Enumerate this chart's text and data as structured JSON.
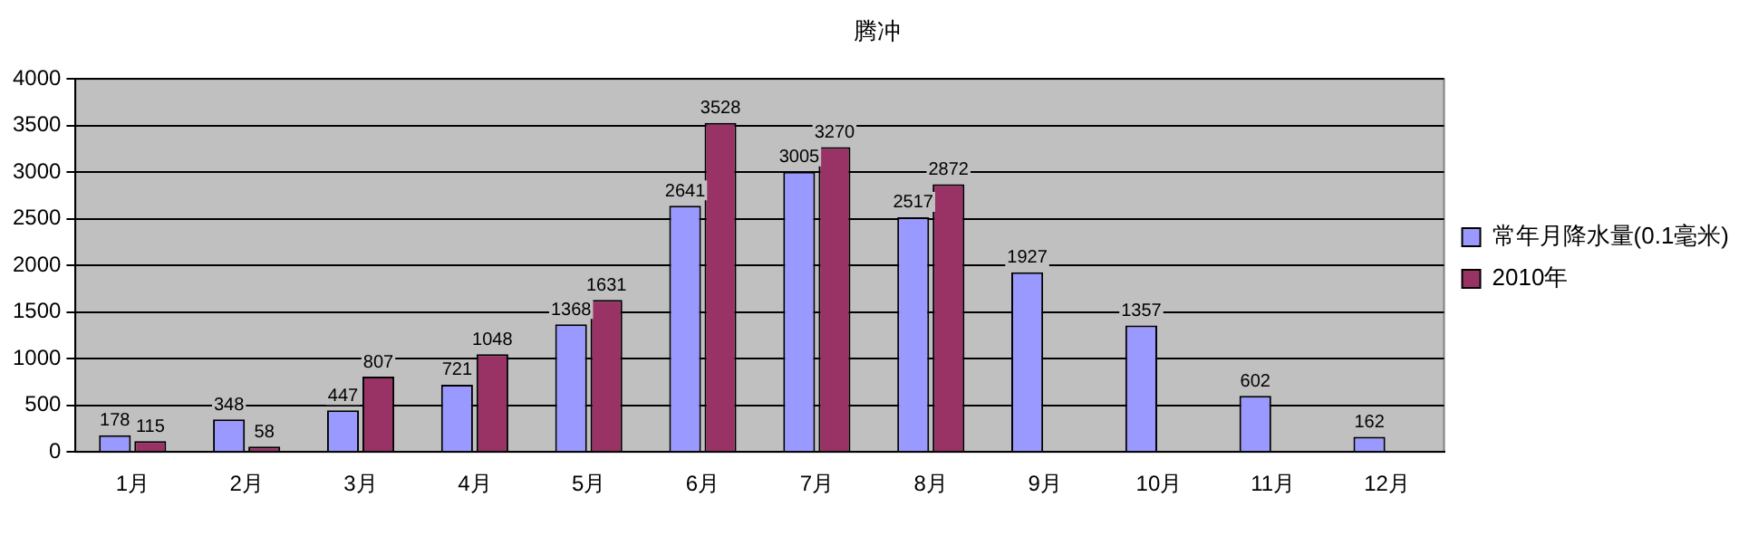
{
  "chart_data": {
    "type": "bar",
    "title": "腾冲",
    "categories": [
      "1月",
      "2月",
      "3月",
      "4月",
      "5月",
      "6月",
      "7月",
      "8月",
      "9月",
      "10月",
      "11月",
      "12月"
    ],
    "series": [
      {
        "name": "常年月降水量(0.1毫米)",
        "color": "#9999ff",
        "values": [
          178,
          348,
          447,
          721,
          1368,
          2641,
          3005,
          2517,
          1927,
          1357,
          602,
          162
        ]
      },
      {
        "name": "2010年",
        "color": "#993366",
        "values": [
          115,
          58,
          807,
          1048,
          1631,
          3528,
          3270,
          2872,
          null,
          null,
          null,
          null
        ]
      }
    ],
    "ylim": [
      0,
      4000
    ],
    "yticks": [
      0,
      500,
      1000,
      1500,
      2000,
      2500,
      3000,
      3500,
      4000
    ],
    "grid": "y",
    "legend": "right",
    "data_labels": true
  }
}
